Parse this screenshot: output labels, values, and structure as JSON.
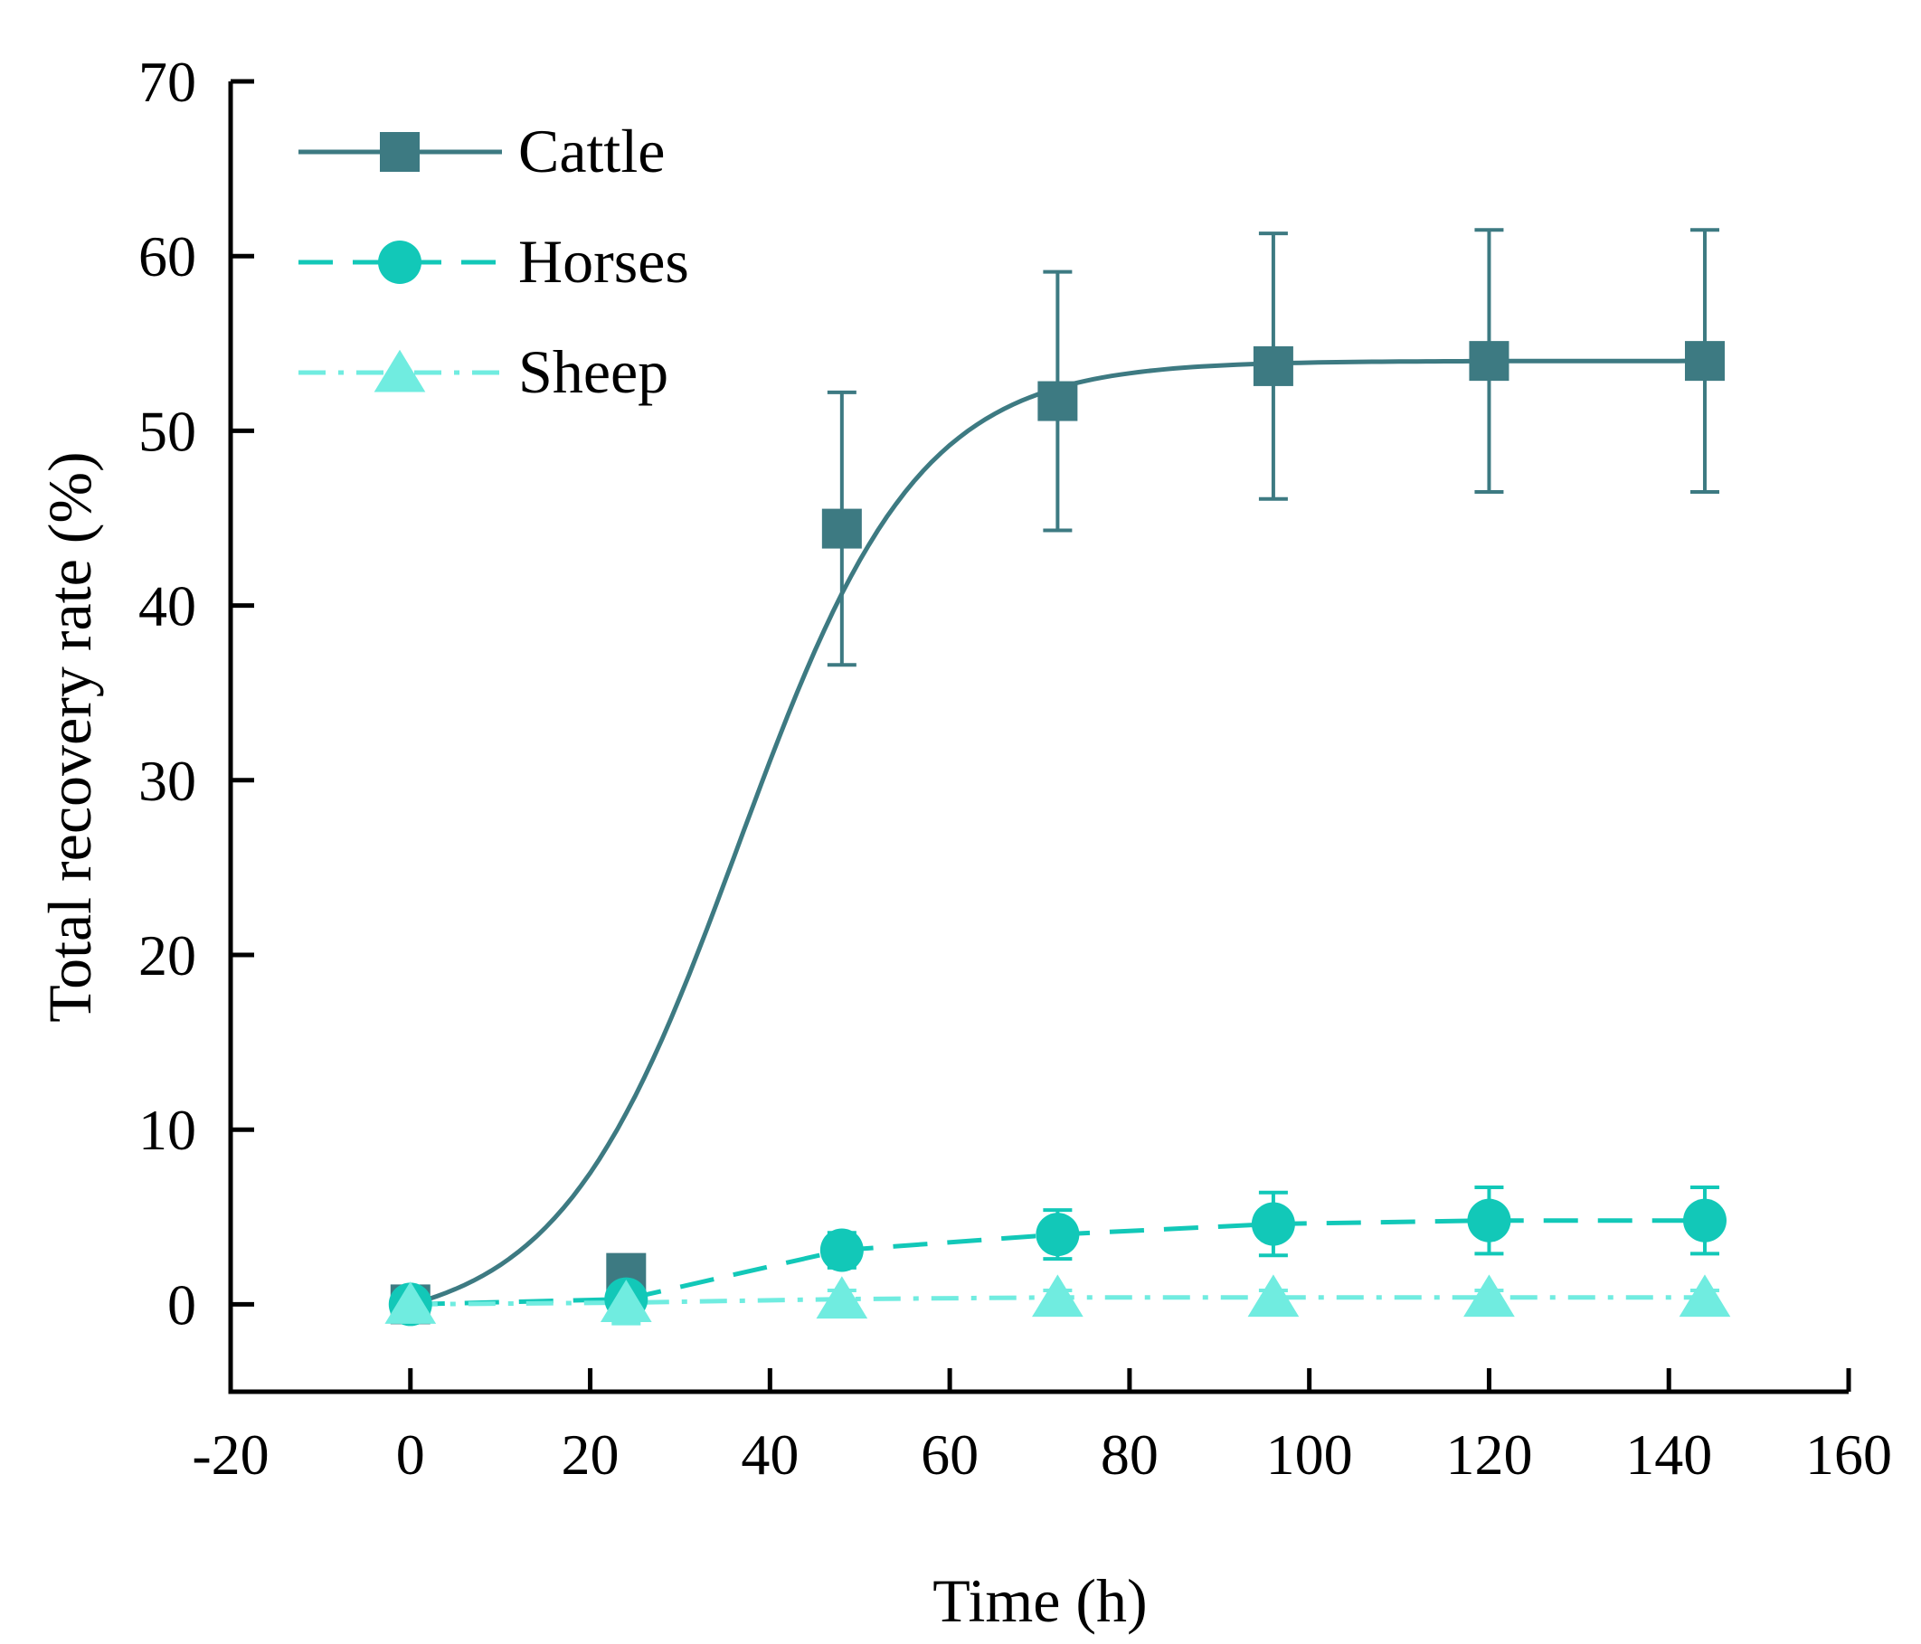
{
  "chart_data": {
    "type": "line",
    "title": "",
    "xlabel": "Time (h)",
    "ylabel": "Total recovery rate (%)",
    "xlim": [
      -20,
      160
    ],
    "ylim": [
      -5,
      70
    ],
    "xticks": [
      -20,
      0,
      20,
      40,
      60,
      80,
      100,
      120,
      140,
      160
    ],
    "yticks": [
      0,
      10,
      20,
      30,
      40,
      50,
      60,
      70
    ],
    "xtick_labels": [
      "-20",
      "0",
      "20",
      "40",
      "60",
      "80",
      "100",
      "120",
      "140",
      "160"
    ],
    "ytick_labels": [
      "0",
      "10",
      "20",
      "30",
      "40",
      "50",
      "60",
      "70"
    ],
    "legend_position": "top-left",
    "series": [
      {
        "name": "Cattle",
        "color": "#3d7a82",
        "marker": "square",
        "line_style": "solid",
        "fit": "sigmoid",
        "x": [
          0,
          24,
          48,
          72,
          96,
          120,
          144
        ],
        "y": [
          0,
          1.8,
          44.4,
          51.7,
          53.7,
          54.0,
          54.0
        ],
        "error": [
          0,
          0,
          7.8,
          7.4,
          7.6,
          7.5,
          7.5
        ]
      },
      {
        "name": "Horses",
        "color": "#12c8b8",
        "marker": "circle",
        "line_style": "dashed",
        "fit": "linear",
        "x": [
          0,
          24,
          48,
          72,
          96,
          120,
          144
        ],
        "y": [
          0,
          0.3,
          3.1,
          4.0,
          4.6,
          4.8,
          4.8
        ],
        "error": [
          0,
          0,
          1.0,
          1.4,
          1.8,
          1.9,
          1.9
        ]
      },
      {
        "name": "Sheep",
        "color": "#70ece0",
        "marker": "triangle",
        "line_style": "dashdot",
        "fit": "linear",
        "x": [
          0,
          24,
          48,
          72,
          96,
          120,
          144
        ],
        "y": [
          0,
          0.1,
          0.3,
          0.4,
          0.4,
          0.4,
          0.4
        ],
        "error": [
          0,
          1.2,
          0.5,
          0.4,
          0.4,
          0.4,
          0.4
        ]
      }
    ]
  }
}
